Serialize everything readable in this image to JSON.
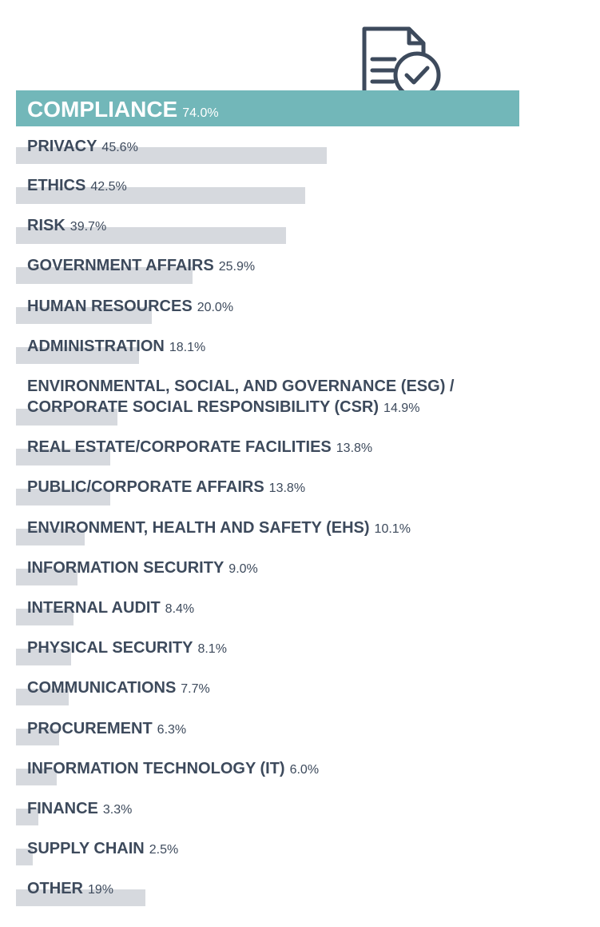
{
  "chart_data": {
    "type": "bar",
    "orientation": "horizontal",
    "colors": {
      "highlight": "#72b7b9",
      "bar": "#d6d9de",
      "text": "#3d4a5c",
      "highlight_text": "#ffffff"
    },
    "icon": "document-checkmark-icon",
    "highlight": {
      "label": "COMPLIANCE",
      "value": 74.0,
      "value_label": "74.0%"
    },
    "categories": [
      "PRIVACY",
      "ETHICS",
      "RISK",
      "GOVERNMENT AFFAIRS",
      "HUMAN RESOURCES",
      "ADMINISTRATION",
      "ENVIRONMENTAL, SOCIAL, AND GOVERNANCE (ESG) / CORPORATE SOCIAL RESPONSIBILITY (CSR)",
      "REAL ESTATE/CORPORATE FACILITIES",
      "PUBLIC/CORPORATE AFFAIRS",
      "ENVIRONMENT, HEALTH AND SAFETY (EHS)",
      "INFORMATION SECURITY",
      "INTERNAL AUDIT",
      "PHYSICAL SECURITY",
      "COMMUNICATIONS",
      "PROCUREMENT",
      "INFORMATION TECHNOLOGY (IT)",
      "FINANCE",
      "SUPPLY CHAIN",
      "OTHER"
    ],
    "values": [
      45.6,
      42.5,
      39.7,
      25.9,
      20.0,
      18.1,
      14.9,
      13.8,
      13.8,
      10.1,
      9.0,
      8.4,
      8.1,
      7.7,
      6.3,
      6.0,
      3.3,
      2.5,
      19
    ],
    "value_labels": [
      "45.6%",
      "42.5%",
      "39.7%",
      "25.9%",
      "20.0%",
      "18.1%",
      "14.9%",
      "13.8%",
      "13.8%",
      "10.1%",
      "9.0%",
      "8.4%",
      "8.1%",
      "7.7%",
      "6.3%",
      "6.0%",
      "3.3%",
      "2.5%",
      "19%"
    ]
  }
}
